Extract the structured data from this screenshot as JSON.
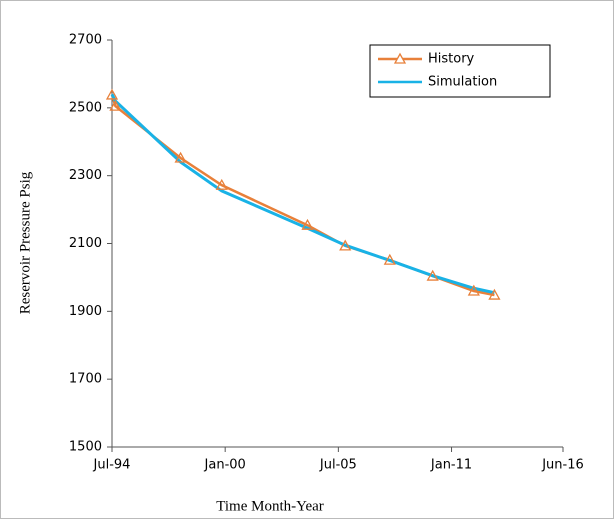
{
  "chart_data": {
    "type": "line",
    "xlabel": "Time  Month-Year",
    "ylabel": "Reservoir Pressure Psig",
    "xlim": [
      "1994-07",
      "2016-06"
    ],
    "xticks": [
      {
        "value": "1994-07",
        "label": "Jul-94"
      },
      {
        "value": "2000-01",
        "label": "Jan-00"
      },
      {
        "value": "2005-07",
        "label": "Jul-05"
      },
      {
        "value": "2011-01",
        "label": "Jan-11"
      },
      {
        "value": "2016-06",
        "label": "Jun-16"
      }
    ],
    "ylim": [
      1500,
      2700
    ],
    "yticks": [
      1500,
      1700,
      1900,
      2100,
      2300,
      2500,
      2700
    ],
    "grid": false,
    "legend": "upper right",
    "x": [
      "1994-07",
      "1994-09",
      "1997-11",
      "1999-11",
      "2004-01",
      "2005-11",
      "2008-01",
      "2010-02",
      "2012-02",
      "2013-02"
    ],
    "series": [
      {
        "name": "History",
        "color": "#e8803a",
        "marker": "triangle",
        "values": [
          2538,
          2505,
          2352,
          2272,
          2154,
          2093,
          2051,
          2004,
          1960,
          1948
        ]
      },
      {
        "name": "Simulation",
        "color": "#19b2e6",
        "values": [
          2540,
          2520,
          2340,
          2255,
          2145,
          2095,
          2050,
          2005,
          1968,
          1955
        ]
      }
    ]
  }
}
